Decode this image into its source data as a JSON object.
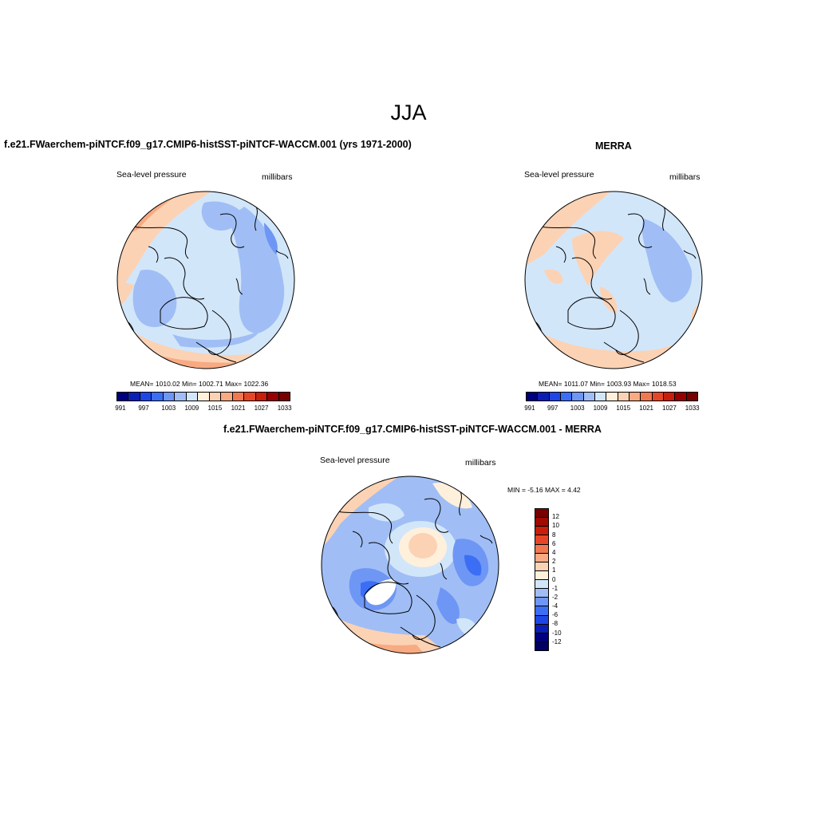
{
  "figure": {
    "title": "JJA"
  },
  "panels": [
    {
      "title": "f.e21.FWaerchem-piNTCF.f09_g17.CMIP6-histSST-piNTCF-WACCM.001 (yrs 1971-2000)",
      "variable": "Sea-level pressure",
      "units": "millibars",
      "stats": "MEAN= 1010.02  Min= 1002.71  Max= 1022.36"
    },
    {
      "title": "MERRA",
      "variable": "Sea-level pressure",
      "units": "millibars",
      "stats": "MEAN= 1011.07  Min= 1003.93  Max= 1018.53"
    },
    {
      "title": "f.e21.FWaerchem-piNTCF.f09_g17.CMIP6-histSST-piNTCF-WACCM.001 - MERRA",
      "variable": "Sea-level pressure",
      "units": "millibars",
      "stats": "MIN =  -5.16 MAX =   4.42"
    }
  ],
  "colorbars": {
    "absolute": {
      "colors": [
        "#00007f",
        "#0a1eb4",
        "#1e46e6",
        "#3c6ef5",
        "#6e96f5",
        "#a0bef5",
        "#d2e6fa",
        "#fff0dc",
        "#fcd2b4",
        "#f8aa82",
        "#f07850",
        "#e64628",
        "#c81e0a",
        "#960000",
        "#780000"
      ],
      "tick_labels": [
        "991",
        "997",
        "1003",
        "1009",
        "1015",
        "1021",
        "1027",
        "1033"
      ]
    },
    "difference": {
      "colors": [
        "#780000",
        "#a00a00",
        "#c81e0a",
        "#e64628",
        "#f07850",
        "#f8aa82",
        "#fcd2b4",
        "#fff0dc",
        "#d2e6fa",
        "#a0bef5",
        "#6e96f5",
        "#3c6ef5",
        "#1e46e6",
        "#0a1eb4",
        "#00007f",
        "#000064"
      ],
      "tick_labels": [
        "12",
        "10",
        "8",
        "6",
        "4",
        "2",
        "1",
        "0",
        "-1",
        "-2",
        "-4",
        "-6",
        "-8",
        "-10",
        "-12"
      ]
    }
  }
}
